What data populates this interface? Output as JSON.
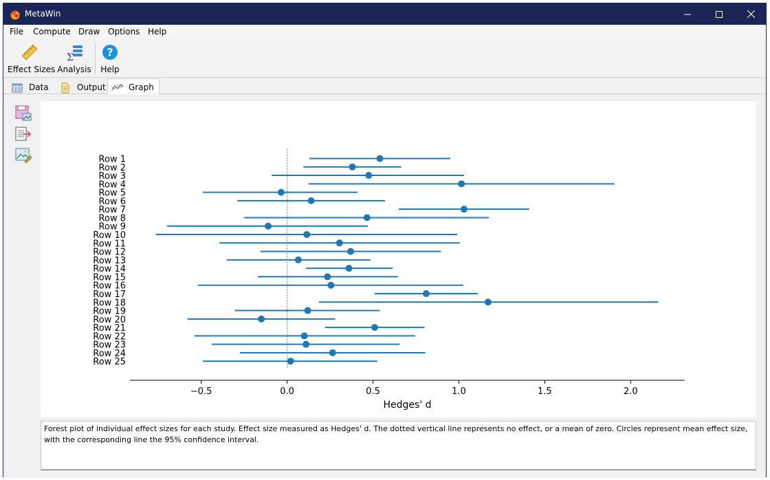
{
  "window": {
    "title": "MetaWin"
  },
  "menu": [
    "File",
    "Compute",
    "Draw",
    "Options",
    "Help"
  ],
  "toolbar": [
    {
      "label": "Effect Sizes",
      "icon": "ruler-icon"
    },
    {
      "label": "Analysis",
      "icon": "sigma-analysis-icon"
    },
    {
      "label": "Help",
      "icon": "help-icon"
    }
  ],
  "tabs": [
    {
      "label": "Data",
      "icon": "table-icon",
      "active": false
    },
    {
      "label": "Output",
      "icon": "document-icon",
      "active": false
    },
    {
      "label": "Graph",
      "icon": "line-graph-icon",
      "active": true
    }
  ],
  "side_tools": [
    "save-image-icon",
    "export-icon",
    "edit-image-icon"
  ],
  "chart_data": {
    "type": "scatter",
    "subtype": "forest-plot",
    "xlabel": "Hedges' d",
    "xlim": [
      -0.915,
      2.315
    ],
    "xticks": [
      -0.5,
      0.0,
      0.5,
      1.0,
      1.5,
      2.0
    ],
    "xtick_labels": [
      "−0.5",
      "0.0",
      "0.5",
      "1.0",
      "1.5",
      "2.0"
    ],
    "reference_line": {
      "x": 0,
      "style": "dotted"
    },
    "color": "#1f77b4",
    "rows": [
      {
        "label": "Row 1",
        "mean": 0.54,
        "lower": 0.13,
        "upper": 0.95
      },
      {
        "label": "Row 2",
        "mean": 0.38,
        "lower": 0.095,
        "upper": 0.665
      },
      {
        "label": "Row 3",
        "mean": 0.475,
        "lower": -0.09,
        "upper": 1.03
      },
      {
        "label": "Row 4",
        "mean": 1.015,
        "lower": 0.125,
        "upper": 1.905
      },
      {
        "label": "Row 5",
        "mean": -0.035,
        "lower": -0.49,
        "upper": 0.41
      },
      {
        "label": "Row 6",
        "mean": 0.14,
        "lower": -0.29,
        "upper": 0.57
      },
      {
        "label": "Row 7",
        "mean": 1.03,
        "lower": 0.65,
        "upper": 1.41
      },
      {
        "label": "Row 8",
        "mean": 0.465,
        "lower": -0.25,
        "upper": 1.175
      },
      {
        "label": "Row 9",
        "mean": -0.11,
        "lower": -0.7,
        "upper": 0.47
      },
      {
        "label": "Row 10",
        "mean": 0.115,
        "lower": -0.765,
        "upper": 0.99
      },
      {
        "label": "Row 11",
        "mean": 0.305,
        "lower": -0.395,
        "upper": 1.005
      },
      {
        "label": "Row 12",
        "mean": 0.37,
        "lower": -0.155,
        "upper": 0.895
      },
      {
        "label": "Row 13",
        "mean": 0.065,
        "lower": -0.35,
        "upper": 0.485
      },
      {
        "label": "Row 14",
        "mean": 0.36,
        "lower": 0.11,
        "upper": 0.615
      },
      {
        "label": "Row 15",
        "mean": 0.235,
        "lower": -0.17,
        "upper": 0.645
      },
      {
        "label": "Row 16",
        "mean": 0.255,
        "lower": -0.52,
        "upper": 1.025
      },
      {
        "label": "Row 17",
        "mean": 0.81,
        "lower": 0.51,
        "upper": 1.11
      },
      {
        "label": "Row 18",
        "mean": 1.17,
        "lower": 0.185,
        "upper": 2.16
      },
      {
        "label": "Row 19",
        "mean": 0.12,
        "lower": -0.305,
        "upper": 0.54
      },
      {
        "label": "Row 20",
        "mean": -0.15,
        "lower": -0.58,
        "upper": 0.28
      },
      {
        "label": "Row 21",
        "mean": 0.51,
        "lower": 0.22,
        "upper": 0.8
      },
      {
        "label": "Row 22",
        "mean": 0.1,
        "lower": -0.54,
        "upper": 0.745
      },
      {
        "label": "Row 23",
        "mean": 0.11,
        "lower": -0.44,
        "upper": 0.655
      },
      {
        "label": "Row 24",
        "mean": 0.265,
        "lower": -0.275,
        "upper": 0.805
      },
      {
        "label": "Row 25",
        "mean": 0.02,
        "lower": -0.49,
        "upper": 0.525
      }
    ]
  },
  "caption": "Forest plot of individual effect sizes for each study. Effect size measured as Hedges' d. The dotted vertical line represents no effect, or a mean of zero. Circles represent mean effect size, with the corresponding line the 95% confidence interval."
}
